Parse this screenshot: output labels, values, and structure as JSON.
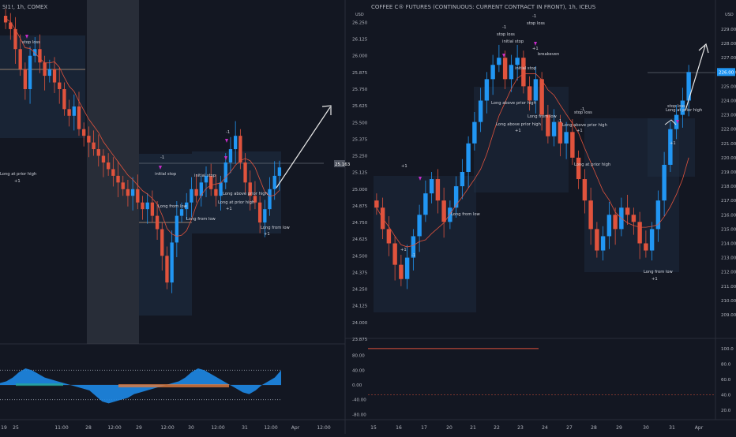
{
  "colors": {
    "background": "#131722",
    "panel_border": "#2a2e39",
    "grid": "#1e2230",
    "axis_text": "#b2b5be",
    "up_candle": "#2196f3",
    "down_candle": "#e0533d",
    "neutral_candle": "#c8c8c8",
    "annotation_text": "#d1d4dc",
    "stop_marker": "#c62cc6",
    "ma_line": "#e0533d",
    "level_line": "#c0a080",
    "zone_fill": "#1f2f45",
    "highlight_band": "#3a3f4a",
    "price_label_bg": "#4d525e",
    "osc_blue": "#1e88e5",
    "osc_orange": "#e07a3d",
    "osc_teal": "#26a69a",
    "dotted_ref": "#9aa0ac",
    "red_ref": "#e0533d",
    "arrow": "#e8e8e8"
  },
  "left_chart": {
    "header": "SI1!, 1h, COMEX",
    "x_ticks": [
      "19",
      "25",
      "11:00",
      "28",
      "12:00",
      "29",
      "12:00",
      "30",
      "12:00",
      "31",
      "12:00",
      "Apr",
      "12:00"
    ],
    "current_price_label": "25.163",
    "annotations": [
      "stop loss",
      "Long at prior high",
      "+1",
      "initial stop",
      "initial stop",
      "-1",
      "Long from low",
      "Long from low",
      "Long above prior high",
      "Long at prior high",
      "+1",
      "Long from low",
      "+1",
      "-1"
    ],
    "osc_labels": [
      "100.00",
      "80.00",
      "40.00",
      "0.00",
      "-40.00",
      "-80.00"
    ]
  },
  "right_chart": {
    "header": "COFFEE C® FUTURES (CONTINUOUS: CURRENT CONTRACT IN FRONT), 1h, ICEUS",
    "x_ticks": [
      "15",
      "16",
      "17",
      "20",
      "21",
      "22",
      "23",
      "24",
      "27",
      "28",
      "29",
      "30",
      "31",
      "Apr"
    ],
    "current_price_label": "226.00",
    "price_ticks": [
      "229.00",
      "228.00",
      "227.00",
      "226.00",
      "225.00",
      "224.00",
      "223.00",
      "222.00",
      "221.00",
      "220.00",
      "219.00",
      "218.00",
      "217.00",
      "216.00",
      "215.00",
      "214.00",
      "213.00",
      "212.00",
      "211.00",
      "210.00",
      "209.00"
    ],
    "axis_top_label": "USD",
    "annotations": [
      "-1",
      "stop loss",
      "-1",
      "initial stop",
      "stop loss",
      "+1",
      "breakeven",
      "initial stop",
      "Long above prior high",
      "-1",
      "stop loss",
      "Long above prior high",
      "+1",
      "Long from low",
      "-1",
      "Long above prior high",
      "+1",
      "Long at prior high",
      "+1",
      "Long from low",
      "+1",
      "-1",
      "stop loss",
      "Long at prior high",
      "+1",
      "Long from low",
      "+1"
    ],
    "osc_labels": [
      "100.0",
      "80.0",
      "60.0",
      "40.0",
      "20.0"
    ]
  },
  "center_axis": {
    "price_ticks": [
      "26.250",
      "26.125",
      "26.000",
      "25.875",
      "25.750",
      "25.625",
      "25.500",
      "25.375",
      "25.250",
      "25.125",
      "25.000",
      "24.875",
      "24.750",
      "24.625",
      "24.500",
      "24.375",
      "24.250",
      "24.125",
      "24.000",
      "23.875"
    ],
    "top_label": "USD",
    "osc_labels": [
      "80.00",
      "40.00",
      "0.00",
      "-40.00",
      "-80.00"
    ]
  },
  "chart_data": [
    {
      "type": "candlestick",
      "title": "SI1!, 1h, COMEX",
      "xlabel": "",
      "ylabel": "",
      "ylim": [
        23.875,
        26.3
      ],
      "grid": false,
      "last_price": 25.163,
      "series": [
        {
          "name": "",
          "close": [
            26.25,
            26.2,
            26.05,
            25.9,
            25.75,
            26.0,
            26.05,
            25.95,
            25.85,
            25.9,
            25.8,
            25.75,
            25.6,
            25.55,
            25.62,
            25.45,
            25.4,
            25.35,
            25.3,
            25.25,
            25.2,
            25.15,
            25.1,
            25.05,
            25.0,
            24.95,
            25.0,
            24.9,
            24.85,
            24.9,
            24.8,
            24.7,
            24.5,
            24.3,
            24.6,
            24.8,
            24.85,
            24.9,
            25.0,
            24.95,
            25.05,
            25.1,
            25.0,
            24.95,
            25.05,
            25.2,
            25.3,
            25.4,
            25.2,
            25.05,
            24.95,
            24.9,
            24.75,
            24.85,
            25.0,
            25.1,
            25.163
          ]
        }
      ]
    },
    {
      "type": "candlestick",
      "title": "COFFEE C® FUTURES (CONTINUOUS: CURRENT CONTRACT IN FRONT), 1h, ICEUS",
      "xlabel": "",
      "ylabel": "",
      "ylim": [
        209,
        229
      ],
      "grid": false,
      "last_price": 226.0,
      "series": [
        {
          "name": "",
          "close": [
            216.5,
            215.0,
            214.0,
            212.5,
            211.5,
            213.0,
            214.5,
            216.0,
            217.5,
            218.5,
            217.0,
            215.5,
            216.5,
            218.0,
            219.0,
            221.0,
            222.5,
            224.0,
            225.5,
            226.5,
            227.0,
            225.5,
            226.5,
            227.0,
            225.0,
            224.0,
            225.5,
            223.0,
            221.5,
            222.5,
            221.0,
            221.8,
            220.0,
            218.5,
            217.0,
            215.0,
            213.5,
            214.5,
            216.0,
            215.0,
            216.5,
            216.0,
            215.5,
            214.0,
            213.5,
            215.0,
            217.0,
            219.5,
            222.0,
            223.0,
            224.0,
            226.0
          ]
        }
      ]
    }
  ]
}
